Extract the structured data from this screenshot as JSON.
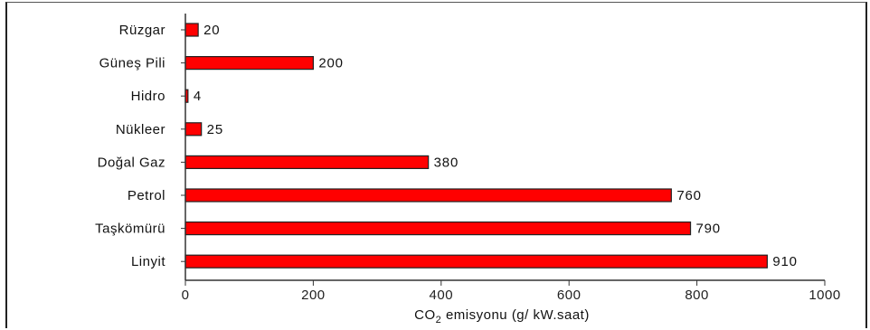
{
  "chart_data": {
    "type": "bar",
    "orientation": "horizontal",
    "categories": [
      "Rüzgar",
      "Güneş Pili",
      "Hidro",
      "Nükleer",
      "Doğal Gaz",
      "Petrol",
      "Taşkömürü",
      "Linyit"
    ],
    "values": [
      20,
      200,
      4,
      25,
      380,
      760,
      790,
      910
    ],
    "value_labels": [
      "20",
      "200",
      "4",
      "25",
      "380",
      "760",
      "790",
      "910"
    ],
    "xlabel": {
      "prefix": "CO",
      "subscript": "2",
      "suffix": " emisyonu (g/ kW.saat)"
    },
    "xlim": [
      0,
      1000
    ],
    "xticks": [
      "0",
      "200",
      "400",
      "600",
      "800",
      "1000"
    ],
    "bar_color": "#ff0000",
    "bar_edge_color": "#222222",
    "grid": false,
    "legend": "none"
  }
}
